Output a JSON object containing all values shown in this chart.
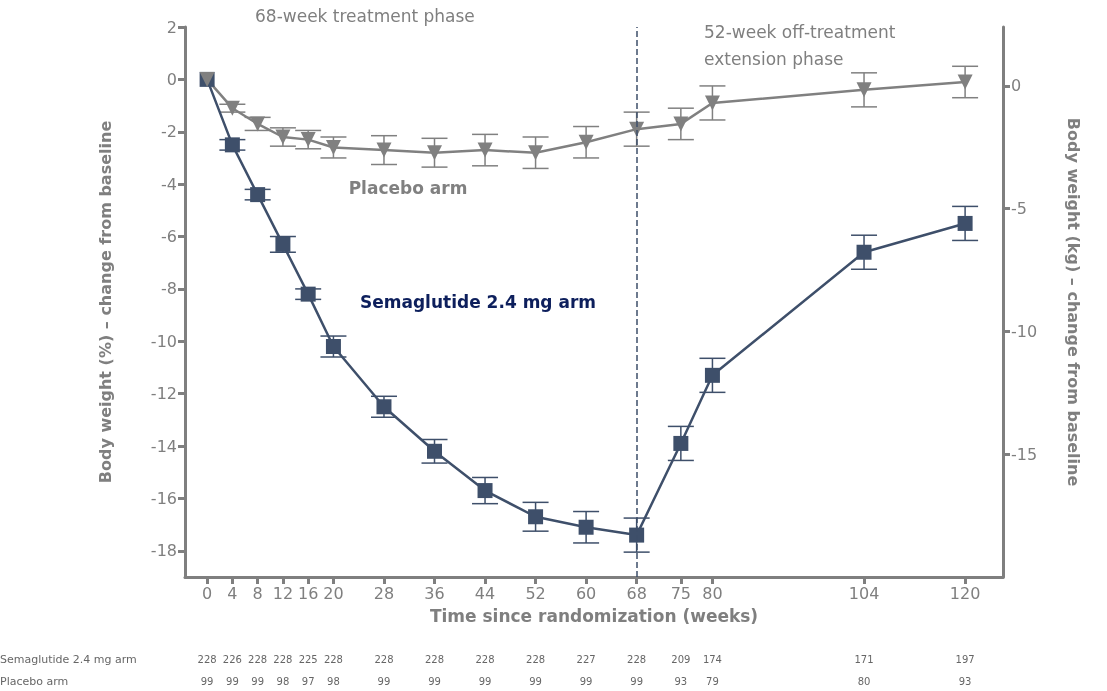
{
  "chart_data": {
    "type": "line",
    "xlabel": "Time since randomization (weeks)",
    "ylabel": "Body weight (%) – change from baseline",
    "y2label": "Body weight (kg) – change from baseline",
    "x": [
      0,
      4,
      8,
      12,
      16,
      20,
      28,
      36,
      44,
      52,
      60,
      68,
      75,
      80,
      104,
      120
    ],
    "series": [
      {
        "name": "Semaglutide 2.4 mg arm",
        "color": "#3e4f6a",
        "marker": "square",
        "values": [
          0,
          -2.5,
          -4.4,
          -6.3,
          -8.2,
          -10.2,
          -12.5,
          -14.2,
          -15.7,
          -16.7,
          -17.1,
          -17.4,
          -13.9,
          -11.3,
          -6.6,
          -5.5
        ],
        "errors": [
          null,
          0.2,
          0.2,
          0.3,
          0.2,
          0.4,
          0.4,
          0.45,
          0.5,
          0.55,
          0.6,
          0.65,
          0.65,
          0.65,
          0.65,
          0.65
        ]
      },
      {
        "name": "Placebo arm",
        "color": "#808080",
        "marker": "triangle",
        "values": [
          0,
          -1.1,
          -1.7,
          -2.2,
          -2.3,
          -2.6,
          -2.7,
          -2.8,
          -2.7,
          -2.8,
          -2.4,
          -1.9,
          -1.7,
          -0.9,
          -0.4,
          -0.1
        ],
        "errors": [
          null,
          0.15,
          0.25,
          0.35,
          0.35,
          0.4,
          0.55,
          0.55,
          0.6,
          0.6,
          0.6,
          0.65,
          0.6,
          0.65,
          0.65,
          0.6
        ]
      }
    ],
    "xlim": [
      -3.5,
      126
    ],
    "xticks": [
      0,
      4,
      8,
      12,
      16,
      20,
      28,
      36,
      44,
      52,
      60,
      68,
      75,
      80,
      104,
      120
    ],
    "ylim": [
      -19,
      2
    ],
    "yticks": [
      -18,
      -16,
      -14,
      -12,
      -10,
      -8,
      -6,
      -4,
      -2,
      0,
      2
    ],
    "y2lim": [
      -20,
      2.4
    ],
    "y2ticks": [
      -15,
      -10,
      -5,
      0
    ],
    "grid": false,
    "line_style": "solid",
    "ref_lines": [
      {
        "axis": "x",
        "value": 68,
        "color": "#3e4f6a",
        "line_style": "dashed"
      }
    ],
    "annotations": [
      "68-week treatment phase",
      "52-week off-treatment extension phase",
      "Semaglutide 2.4 mg arm",
      "228",
      "226",
      "228",
      "228",
      "225",
      "228",
      "228",
      "228",
      "228",
      "228",
      "227",
      "228",
      "209",
      "174",
      "171",
      "197",
      "Placebo arm",
      "99",
      "99",
      "99",
      "98",
      "97",
      "98",
      "99",
      "99",
      "99",
      "99",
      "99",
      "99",
      "93",
      "79",
      "80",
      "93"
    ]
  }
}
